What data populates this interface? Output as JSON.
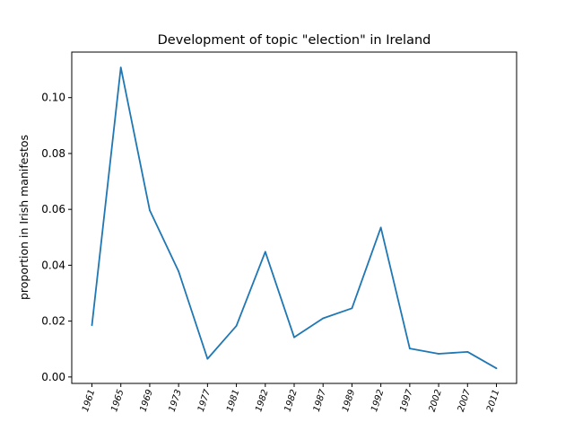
{
  "chart_data": {
    "type": "line",
    "title": "Development of topic \"election\" in Ireland",
    "xlabel": "",
    "ylabel": "proportion in Irish manifestos",
    "categories": [
      "1961",
      "1965",
      "1969",
      "1973",
      "1977",
      "1981",
      "1982",
      "1982",
      "1987",
      "1989",
      "1992",
      "1997",
      "2002",
      "2007",
      "2011"
    ],
    "series": [
      {
        "name": "",
        "color": "#1f77b4",
        "values": [
          0.0185,
          0.1108,
          0.0597,
          0.0378,
          0.0065,
          0.0183,
          0.0448,
          0.0142,
          0.021,
          0.0246,
          0.0535,
          0.0102,
          0.0083,
          0.009,
          0.0031
        ]
      }
    ],
    "ylim": [
      -0.0023,
      0.1163
    ],
    "yticks": [
      0.0,
      0.02,
      0.04,
      0.06,
      0.08,
      0.1
    ],
    "ytick_labels": [
      "0.00",
      "0.02",
      "0.04",
      "0.06",
      "0.08",
      "0.10"
    ],
    "grid": false,
    "legend": "none"
  }
}
